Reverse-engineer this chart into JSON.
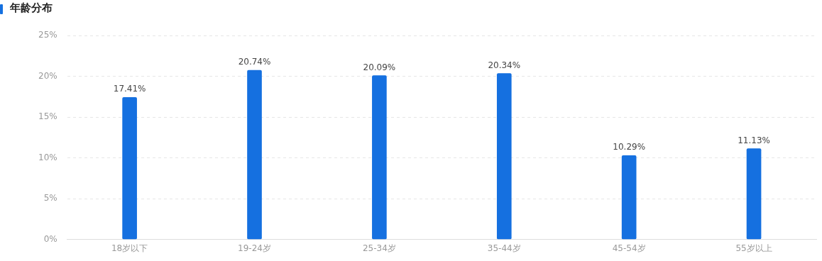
{
  "chart_data": {
    "type": "bar",
    "title": "年龄分布",
    "categories": [
      "18岁以下",
      "19-24岁",
      "25-34岁",
      "35-44岁",
      "45-54岁",
      "55岁以上"
    ],
    "values": [
      17.41,
      20.74,
      20.09,
      20.34,
      10.29,
      11.13
    ],
    "value_labels": [
      "17.41%",
      "20.74%",
      "20.09%",
      "20.34%",
      "10.29%",
      "11.13%"
    ],
    "color": "#1570e0",
    "ylim": [
      0,
      25
    ],
    "yticks": [
      {
        "value": 0,
        "label": "0%"
      },
      {
        "value": 5,
        "label": "5%"
      },
      {
        "value": 10,
        "label": "10%"
      },
      {
        "value": 15,
        "label": "15%"
      },
      {
        "value": 20,
        "label": "20%"
      },
      {
        "value": 25,
        "label": "25%"
      }
    ],
    "grid": "y"
  }
}
